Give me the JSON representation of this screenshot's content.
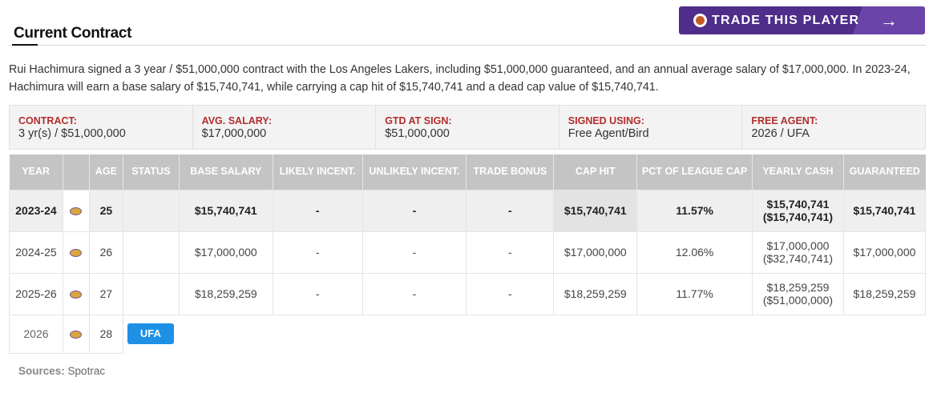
{
  "header": {
    "title": "Current Contract",
    "trade_button_label": "TRADE THIS PLAYER",
    "trade_arrow": "→"
  },
  "summary": "Rui Hachimura signed a 3 year / $51,000,000 contract with the Los Angeles Lakers, including $51,000,000 guaranteed, and an annual average salary of $17,000,000. In 2023-24, Hachimura will earn a base salary of $15,740,741, while carrying a cap hit of $15,740,741 and a dead cap value of $15,740,741.",
  "infobox": [
    {
      "label": "CONTRACT:",
      "value": "3 yr(s) / $51,000,000"
    },
    {
      "label": "AVG. SALARY:",
      "value": "$17,000,000"
    },
    {
      "label": "GTD AT SIGN:",
      "value": "$51,000,000"
    },
    {
      "label": "SIGNED USING:",
      "value": "Free Agent/Bird"
    },
    {
      "label": "FREE AGENT:",
      "value": "2026 / UFA"
    }
  ],
  "table": {
    "headers": [
      "YEAR",
      "",
      "AGE",
      "STATUS",
      "BASE SALARY",
      "LIKELY INCENT.",
      "UNLIKELY INCENT.",
      "TRADE BONUS",
      "CAP HIT",
      "PCT OF LEAGUE CAP",
      "YEARLY CASH",
      "GUARANTEED"
    ],
    "rows": [
      {
        "year": "2023-24",
        "age": "25",
        "status": "",
        "base": "$15,740,741",
        "likely": "-",
        "unlikely": "-",
        "bonus": "-",
        "cap": "$15,740,741",
        "pct": "11.57%",
        "cash": "$15,740,741",
        "cash_cum": "($15,740,741)",
        "gtd": "$15,740,741"
      },
      {
        "year": "2024-25",
        "age": "26",
        "status": "",
        "base": "$17,000,000",
        "likely": "-",
        "unlikely": "-",
        "bonus": "-",
        "cap": "$17,000,000",
        "pct": "12.06%",
        "cash": "$17,000,000",
        "cash_cum": "($32,740,741)",
        "gtd": "$17,000,000"
      },
      {
        "year": "2025-26",
        "age": "27",
        "status": "",
        "base": "$18,259,259",
        "likely": "-",
        "unlikely": "-",
        "bonus": "-",
        "cap": "$18,259,259",
        "pct": "11.77%",
        "cash": "$18,259,259",
        "cash_cum": "($51,000,000)",
        "gtd": "$18,259,259"
      }
    ],
    "fa_row": {
      "year": "2026",
      "age": "28",
      "status": "UFA"
    }
  },
  "sources": {
    "label": "Sources:",
    "value": "Spotrac"
  },
  "colors": {
    "purple": "#4f2d8a",
    "accent_red": "#b32d2d",
    "badge_blue": "#1e90e6",
    "header_gray": "#c4c4c4"
  }
}
